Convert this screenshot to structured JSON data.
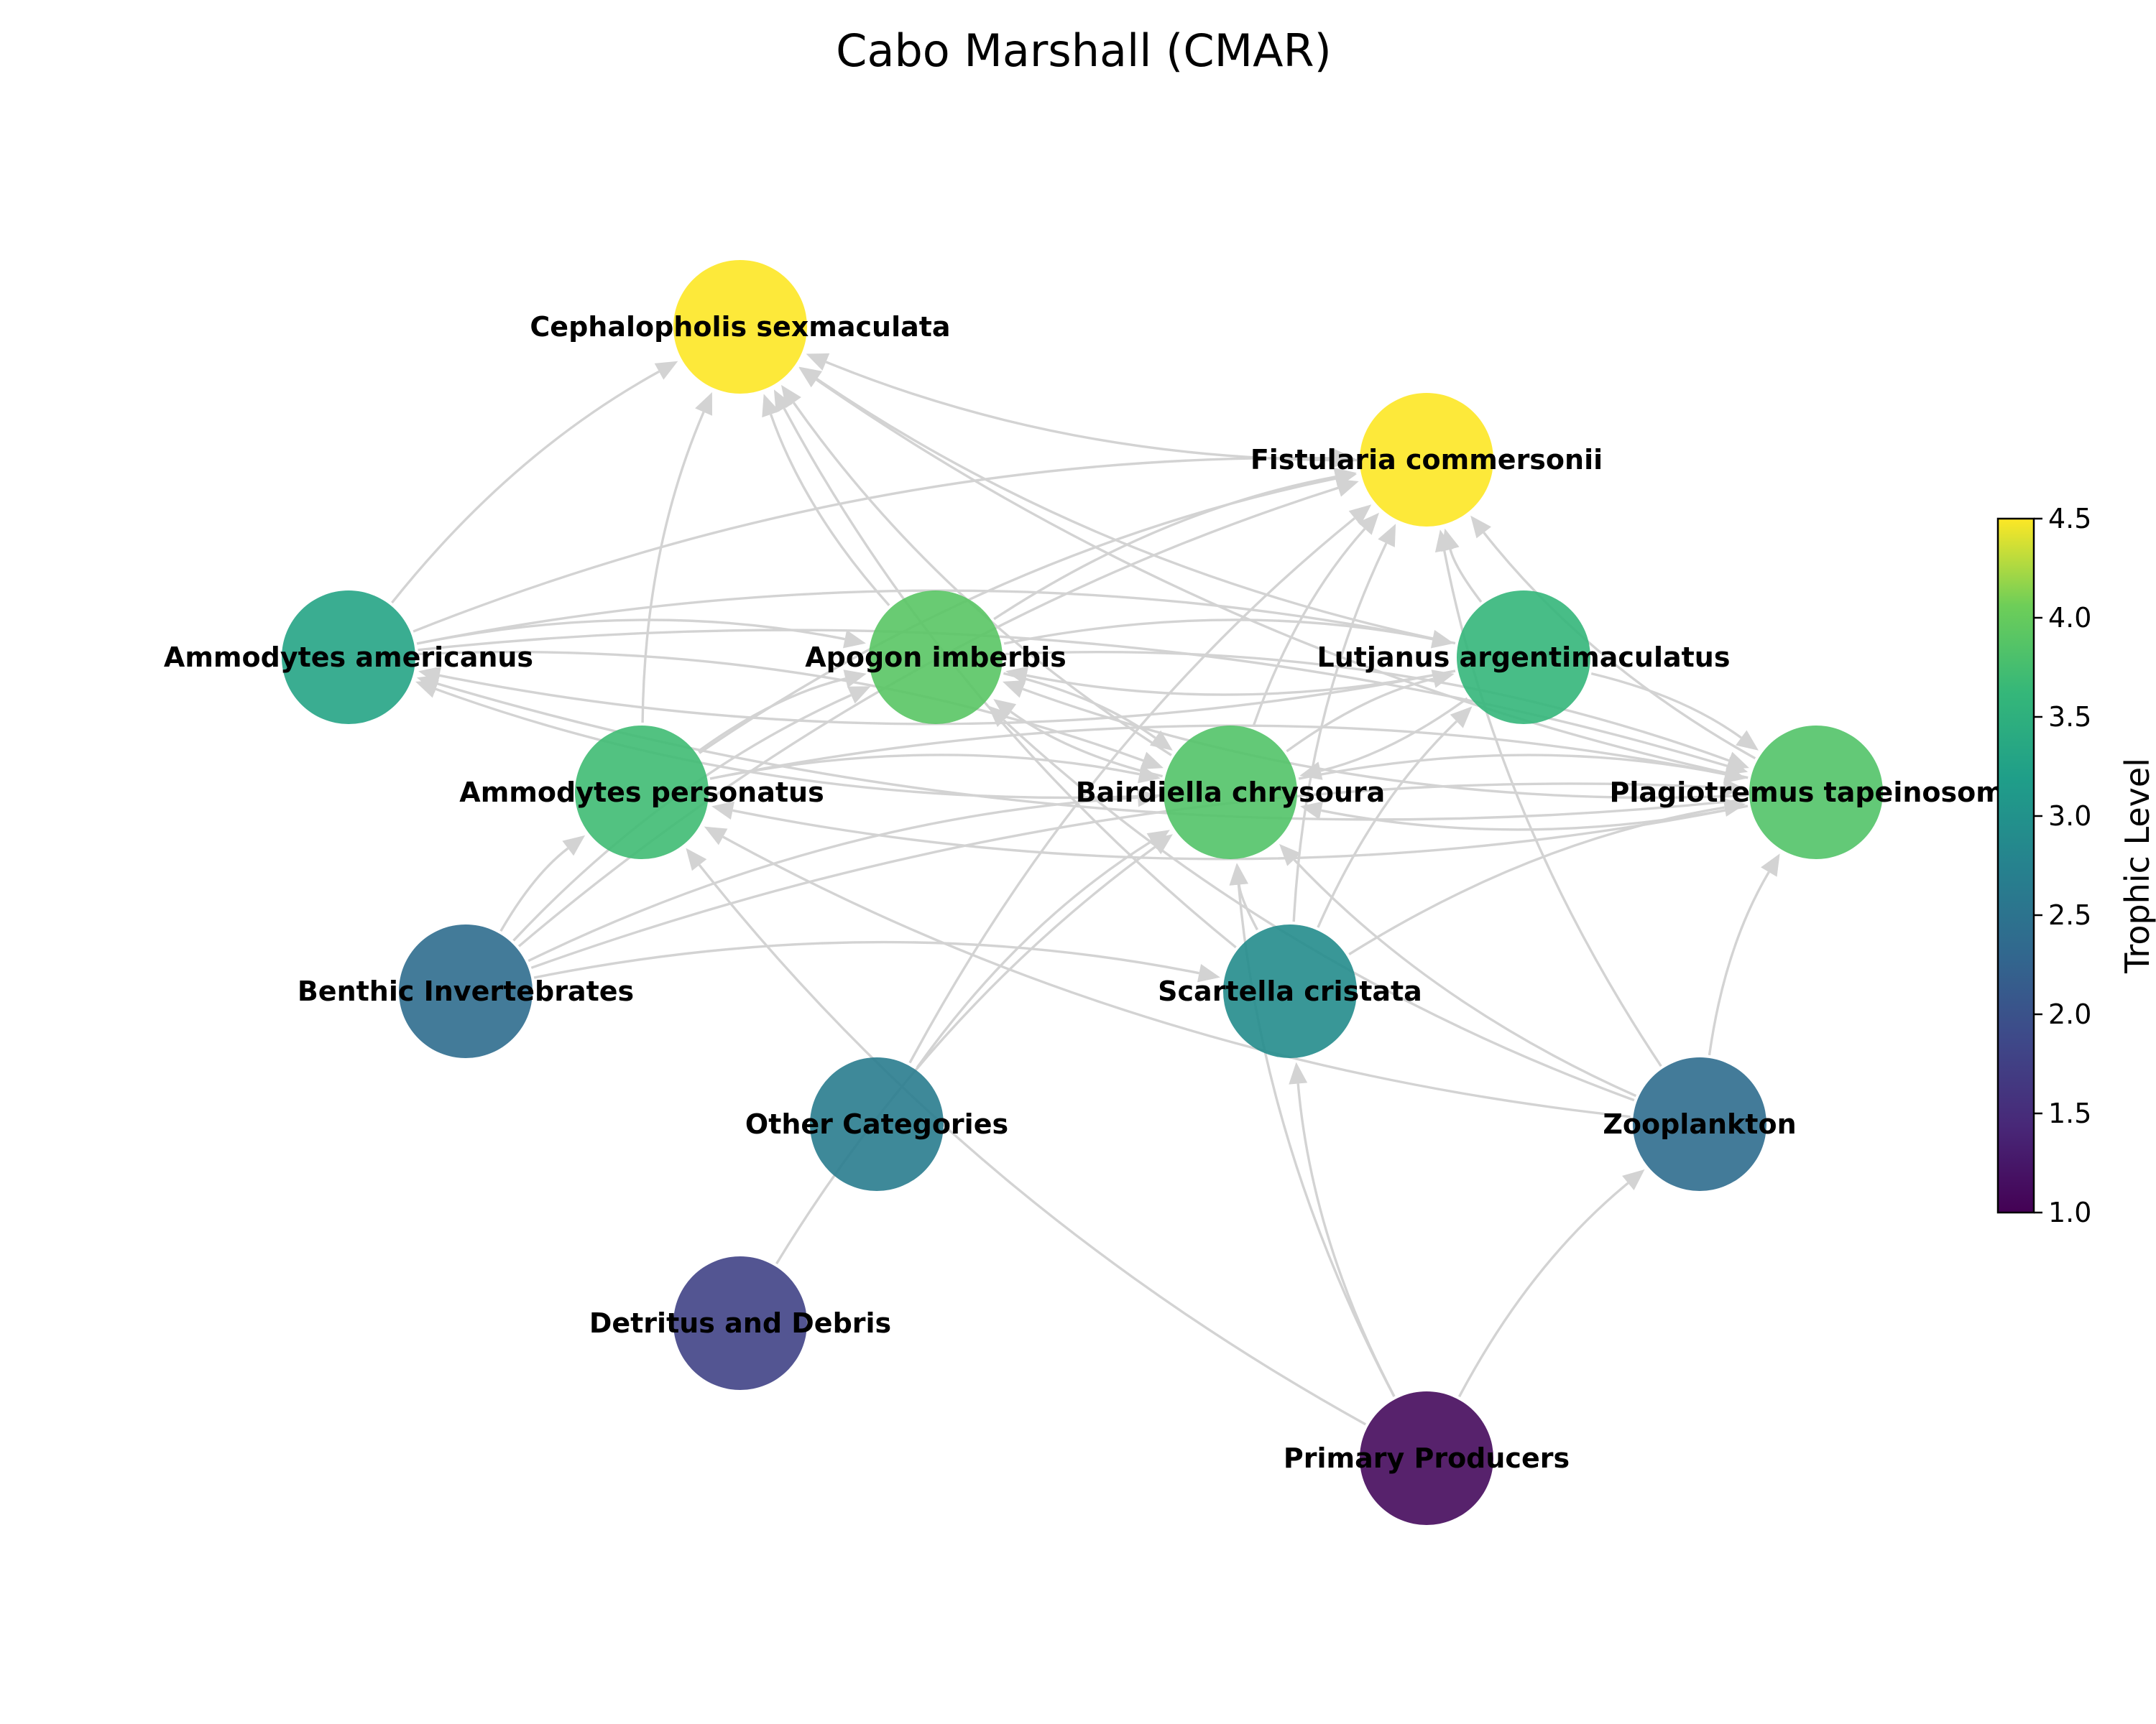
{
  "title": "Cabo Marshall (CMAR)",
  "colorbar": {
    "label": "Trophic Level",
    "min": 1.0,
    "max": 4.5,
    "ticks": [
      "1.0",
      "1.5",
      "2.0",
      "2.5",
      "3.0",
      "3.5",
      "4.0",
      "4.5"
    ],
    "colormap": "viridis"
  },
  "nodes": [
    {
      "id": "cephalopholis",
      "label": "Cephalopholis sexmaculata",
      "trophic_level": 4.5
    },
    {
      "id": "fistularia",
      "label": "Fistularia commersonii",
      "trophic_level": 4.5
    },
    {
      "id": "ammodytes_am",
      "label": "Ammodytes americanus",
      "trophic_level": 3.3
    },
    {
      "id": "apogon",
      "label": "Apogon imberbis",
      "trophic_level": 3.9
    },
    {
      "id": "lutjanus",
      "label": "Lutjanus argentimaculatus",
      "trophic_level": 3.6
    },
    {
      "id": "ammodytes_pe",
      "label": "Ammodytes personatus",
      "trophic_level": 3.7
    },
    {
      "id": "bairdiella",
      "label": "Bairdiella chrysoura",
      "trophic_level": 3.85
    },
    {
      "id": "plagiotremus",
      "label": "Plagiotremus tapeinosoma",
      "trophic_level": 3.85
    },
    {
      "id": "benthic",
      "label": "Benthic Invertebrates",
      "trophic_level": 2.4
    },
    {
      "id": "scartella",
      "label": "Scartella cristata",
      "trophic_level": 2.9
    },
    {
      "id": "other",
      "label": "Other Categories",
      "trophic_level": 2.65
    },
    {
      "id": "zooplankton",
      "label": "Zooplankton",
      "trophic_level": 2.4
    },
    {
      "id": "detritus",
      "label": "Detritus and Debris",
      "trophic_level": 1.8
    },
    {
      "id": "primary",
      "label": "Primary Producers",
      "trophic_level": 1.1
    }
  ],
  "edges": [
    [
      "ammodytes_am",
      "cephalopholis"
    ],
    [
      "ammodytes_pe",
      "cephalopholis"
    ],
    [
      "apogon",
      "cephalopholis"
    ],
    [
      "bairdiella",
      "cephalopholis"
    ],
    [
      "scartella",
      "cephalopholis"
    ],
    [
      "lutjanus",
      "cephalopholis"
    ],
    [
      "fistularia",
      "cephalopholis"
    ],
    [
      "plagiotremus",
      "cephalopholis"
    ],
    [
      "ammodytes_am",
      "fistularia"
    ],
    [
      "apogon",
      "fistularia"
    ],
    [
      "bairdiella",
      "fistularia"
    ],
    [
      "lutjanus",
      "fistularia"
    ],
    [
      "plagiotremus",
      "fistularia"
    ],
    [
      "benthic",
      "fistularia"
    ],
    [
      "scartella",
      "fistularia"
    ],
    [
      "other",
      "fistularia"
    ],
    [
      "ammodytes_pe",
      "fistularia"
    ],
    [
      "ammodytes_am",
      "apogon"
    ],
    [
      "ammodytes_pe",
      "apogon"
    ],
    [
      "bairdiella",
      "apogon"
    ],
    [
      "lutjanus",
      "apogon"
    ],
    [
      "plagiotremus",
      "apogon"
    ],
    [
      "benthic",
      "apogon"
    ],
    [
      "zooplankton",
      "apogon"
    ],
    [
      "ammodytes_am",
      "lutjanus"
    ],
    [
      "bairdiella",
      "lutjanus"
    ],
    [
      "scartella",
      "lutjanus"
    ],
    [
      "apogon",
      "lutjanus"
    ],
    [
      "ammodytes_am",
      "bairdiella"
    ],
    [
      "ammodytes_pe",
      "bairdiella"
    ],
    [
      "apogon",
      "bairdiella"
    ],
    [
      "lutjanus",
      "bairdiella"
    ],
    [
      "plagiotremus",
      "bairdiella"
    ],
    [
      "benthic",
      "bairdiella"
    ],
    [
      "scartella",
      "bairdiella"
    ],
    [
      "zooplankton",
      "bairdiella"
    ],
    [
      "other",
      "bairdiella"
    ],
    [
      "detritus",
      "bairdiella"
    ],
    [
      "ammodytes_am",
      "plagiotremus"
    ],
    [
      "ammodytes_pe",
      "plagiotremus"
    ],
    [
      "apogon",
      "plagiotremus"
    ],
    [
      "bairdiella",
      "plagiotremus"
    ],
    [
      "lutjanus",
      "plagiotremus"
    ],
    [
      "benthic",
      "plagiotremus"
    ],
    [
      "scartella",
      "plagiotremus"
    ],
    [
      "zooplankton",
      "plagiotremus"
    ],
    [
      "plagiotremus",
      "ammodytes_am"
    ],
    [
      "bairdiella",
      "ammodytes_am"
    ],
    [
      "lutjanus",
      "ammodytes_am"
    ],
    [
      "zooplankton",
      "ammodytes_pe"
    ],
    [
      "benthic",
      "ammodytes_pe"
    ],
    [
      "primary",
      "ammodytes_pe"
    ],
    [
      "plagiotremus",
      "ammodytes_pe"
    ],
    [
      "benthic",
      "scartella"
    ],
    [
      "primary",
      "scartella"
    ],
    [
      "primary",
      "zooplankton"
    ],
    [
      "zooplankton",
      "fistularia"
    ],
    [
      "primary",
      "bairdiella"
    ]
  ]
}
